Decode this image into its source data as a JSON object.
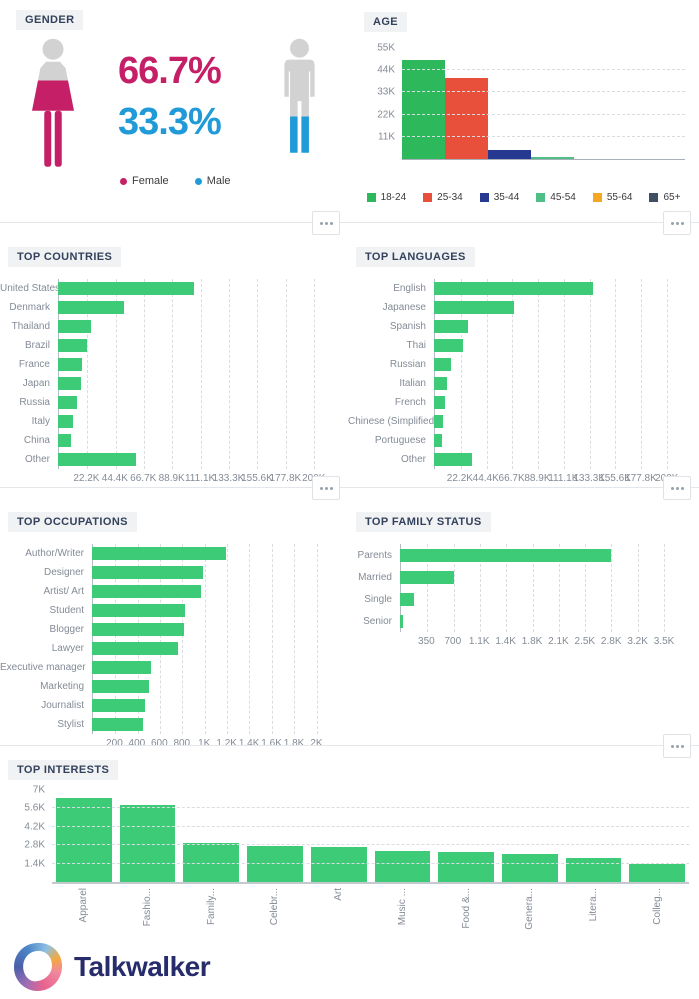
{
  "panels": {
    "gender_title": "GENDER",
    "age_title": "AGE",
    "countries_title": "TOP COUNTRIES",
    "languages_title": "TOP LANGUAGES",
    "occupations_title": "TOP OCCUPATIONS",
    "family_title": "TOP FAMILY STATUS",
    "interests_title": "TOP INTERESTS"
  },
  "gender": {
    "female_pct": "66.7%",
    "male_pct": "33.3%",
    "legend": [
      {
        "label": "Female",
        "color": "#C52067"
      },
      {
        "label": "Male",
        "color": "#209BD8"
      }
    ]
  },
  "icons": {
    "panel_menu": "ellipsis-icon",
    "female": "female-pictogram-icon",
    "male": "male-pictogram-icon",
    "logo": "talkwalker-swirl-icon"
  },
  "colors": {
    "bar_green": "#3DCB78",
    "female_pink": "#C52067",
    "male_blue": "#209BD8",
    "grid": "#d9dde2",
    "axis": "#b6bcc4",
    "tick_text": "#848b96",
    "title_text": "#33415c",
    "brand_navy": "#272c6a"
  },
  "footer": {
    "brand": "Talkwalker"
  },
  "chart_data": [
    {
      "id": "gender",
      "type": "pie",
      "title": "GENDER",
      "categories": [
        "Female",
        "Male"
      ],
      "values": [
        66.7,
        33.3
      ],
      "unit": "%",
      "colors": [
        "#C52067",
        "#209BD8"
      ],
      "legend_position": "bottom"
    },
    {
      "id": "age",
      "type": "bar",
      "title": "AGE",
      "categories": [
        "18-24",
        "25-34",
        "35-44",
        "45-54",
        "55-64",
        "65+"
      ],
      "values": [
        49000,
        40000,
        4300,
        1200,
        0,
        0
      ],
      "colors": [
        "#2EB85C",
        "#E8503C",
        "#26388F",
        "#4FBE87",
        "#F5A623",
        "#3E5062"
      ],
      "ylim": [
        0,
        55000
      ],
      "yticks": [
        11000,
        22000,
        33000,
        44000,
        55000
      ],
      "ytick_labels": [
        "11K",
        "22K",
        "33K",
        "44K",
        "55K"
      ],
      "grid": "dashed-horizontal",
      "legend_position": "bottom"
    },
    {
      "id": "top_countries",
      "type": "bar",
      "orientation": "horizontal",
      "title": "TOP COUNTRIES",
      "categories": [
        "United States",
        "Denmark",
        "Thailand",
        "Brazil",
        "France",
        "Japan",
        "Russia",
        "Italy",
        "China",
        "Other"
      ],
      "values": [
        106000,
        52000,
        26000,
        23000,
        19000,
        18000,
        15000,
        12000,
        10000,
        61000
      ],
      "bar_color": "#3DCB78",
      "xlim": [
        0,
        200000
      ],
      "xticks": [
        22222,
        44444,
        66667,
        88889,
        111111,
        133333,
        155556,
        177778,
        200000
      ],
      "xtick_labels": [
        "22.2K",
        "44.4K",
        "66.7K",
        "88.9K",
        "111.1K",
        "133.3K",
        "155.6K",
        "177.8K",
        "200K"
      ],
      "grid": "dashed-vertical"
    },
    {
      "id": "top_languages",
      "type": "bar",
      "orientation": "horizontal",
      "title": "TOP LANGUAGES",
      "categories": [
        "English",
        "Japanese",
        "Spanish",
        "Thai",
        "Russian",
        "Italian",
        "French",
        "Chinese (Simplified)",
        "Portuguese",
        "Other"
      ],
      "values": [
        137000,
        69000,
        29000,
        25000,
        15000,
        11000,
        9300,
        7600,
        6800,
        33000
      ],
      "bar_color": "#3DCB78",
      "xlim": [
        0,
        200000
      ],
      "xticks": [
        22222,
        44444,
        66667,
        88889,
        111111,
        133333,
        155556,
        177778,
        200000
      ],
      "xtick_labels": [
        "22.2K",
        "44.4K",
        "66.7K",
        "88.9K",
        "111.1K",
        "133.3K",
        "155.6K",
        "177.8K",
        "200K"
      ],
      "grid": "dashed-vertical"
    },
    {
      "id": "top_occupations",
      "type": "bar",
      "orientation": "horizontal",
      "title": "TOP OCCUPATIONS",
      "categories": [
        "Author/Writer",
        "Designer",
        "Artist/ Art",
        "Student",
        "Blogger",
        "Lawyer",
        "Executive manager",
        "Marketing",
        "Journalist",
        "Stylist"
      ],
      "values": [
        1190,
        990,
        970,
        830,
        820,
        770,
        530,
        510,
        470,
        450
      ],
      "bar_color": "#3DCB78",
      "xlim": [
        0,
        2000
      ],
      "xticks": [
        200,
        400,
        600,
        800,
        1000,
        1200,
        1400,
        1600,
        1800,
        2000
      ],
      "xtick_labels": [
        "200",
        "400",
        "600",
        "800",
        "1K",
        "1.2K",
        "1.4K",
        "1.6K",
        "1.8K",
        "2K"
      ],
      "grid": "dashed-vertical"
    },
    {
      "id": "top_family_status",
      "type": "bar",
      "orientation": "horizontal",
      "title": "TOP FAMILY STATUS",
      "categories": [
        "Parents",
        "Married",
        "Single",
        "Senior"
      ],
      "values": [
        2800,
        720,
        180,
        40
      ],
      "bar_color": "#3DCB78",
      "xlim": [
        0,
        3500
      ],
      "xticks": [
        350,
        700,
        1050,
        1400,
        1750,
        2100,
        2450,
        2800,
        3150,
        3500
      ],
      "xtick_labels": [
        "350",
        "700",
        "1.1K",
        "1.4K",
        "1.8K",
        "2.1K",
        "2.5K",
        "2.8K",
        "3.2K",
        "3.5K"
      ],
      "grid": "dashed-vertical"
    },
    {
      "id": "top_interests",
      "type": "bar",
      "title": "TOP INTERESTS",
      "categories": [
        "Apparel",
        "Fashio...",
        "Family...",
        "Celebr...",
        "Art",
        "Music ...",
        "Food &...",
        "Genera...",
        "Litera...",
        "Colleg..."
      ],
      "values": [
        6400,
        5850,
        3000,
        2750,
        2650,
        2350,
        2300,
        2100,
        1800,
        1350
      ],
      "bar_color": "#3DCB78",
      "ylim": [
        0,
        7000
      ],
      "yticks": [
        1400,
        2800,
        4200,
        5600,
        7000
      ],
      "ytick_labels": [
        "1.4K",
        "2.8K",
        "4.2K",
        "5.6K",
        "7K"
      ],
      "grid": "dashed-horizontal",
      "xlabel_rotation": -90
    }
  ]
}
